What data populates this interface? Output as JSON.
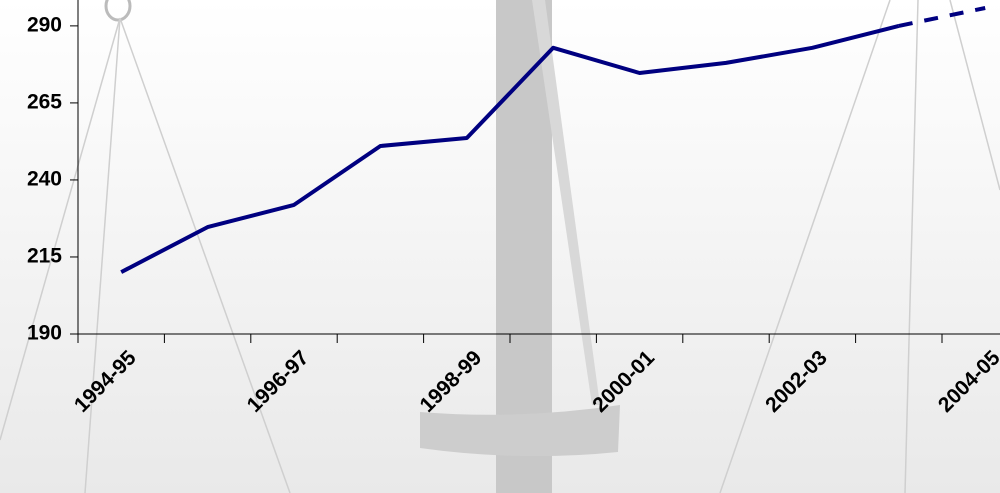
{
  "chart_data": {
    "type": "line",
    "categories": [
      "1994-95",
      null,
      "1996-97",
      null,
      "1998-99",
      null,
      "2000-01",
      null,
      "2002-03",
      null,
      "2004-05"
    ],
    "values": [
      210.1,
      224.7,
      231.9,
      251.0,
      253.6,
      282.9,
      274.7,
      278.0,
      282.9,
      290.0,
      295.8
    ],
    "dashed_from_index": 9,
    "color": "#000080",
    "ylim": [
      190,
      298.4
    ],
    "yticks": [
      190,
      215,
      240,
      265,
      290
    ]
  }
}
